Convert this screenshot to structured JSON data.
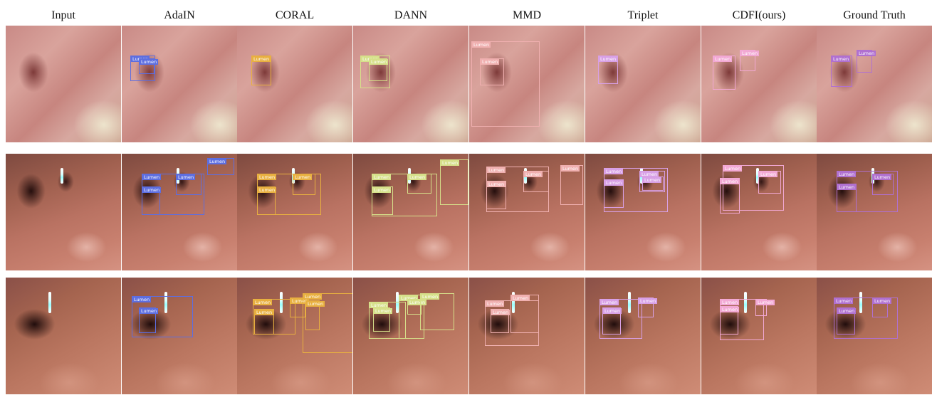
{
  "columns": [
    "Input",
    "AdaIN",
    "CORAL",
    "DANN",
    "MMD",
    "Triplet",
    "CDFI(ours)",
    "Ground Truth"
  ],
  "box_label": "Lumen",
  "method_colors": {
    "AdaIN": "#5d6ee0",
    "CORAL": "#e8b040",
    "DANN": "#d6e08a",
    "MMD": "#f0b0b0",
    "Triplet": "#d8a0e6",
    "CDFI(ours)": "#f2a8d4",
    "Ground Truth": "#b070d0"
  },
  "rows": [
    {
      "scene": "endoscopy frame 1"
    },
    {
      "scene": "endoscopy frame 2"
    },
    {
      "scene": "endoscopy frame 3"
    }
  ]
}
